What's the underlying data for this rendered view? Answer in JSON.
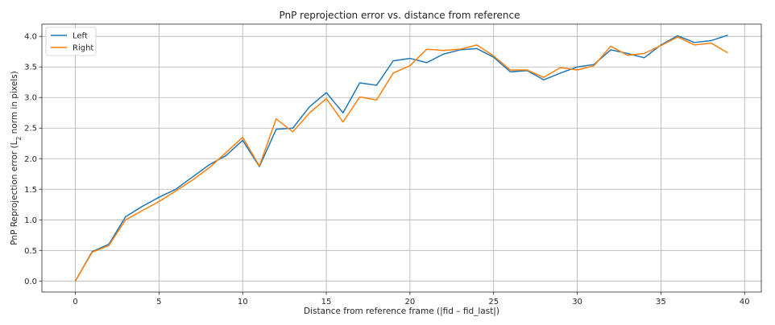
{
  "chart_data": {
    "type": "line",
    "title": "PnP reprojection error vs. distance from reference",
    "xlabel": "Distance from reference frame (|fid – fid_last|)",
    "ylabel_parts": [
      "PnP Reprojection error (L",
      "2",
      " norm in pixels)"
    ],
    "xlim": [
      -2,
      41
    ],
    "ylim": [
      -0.18,
      4.2
    ],
    "x_ticks": [
      0,
      5,
      10,
      15,
      20,
      25,
      30,
      35,
      40
    ],
    "x_tick_labels": [
      "0",
      "5",
      "10",
      "15",
      "20",
      "25",
      "30",
      "35",
      "40"
    ],
    "y_ticks": [
      0.0,
      0.5,
      1.0,
      1.5,
      2.0,
      2.5,
      3.0,
      3.5,
      4.0
    ],
    "y_tick_labels": [
      "0.0",
      "0.5",
      "1.0",
      "1.5",
      "2.0",
      "2.5",
      "3.0",
      "3.5",
      "4.0"
    ],
    "grid": true,
    "legend_position": "top-left",
    "x": [
      0,
      1,
      2,
      3,
      4,
      5,
      6,
      7,
      8,
      9,
      10,
      11,
      12,
      13,
      14,
      15,
      16,
      17,
      18,
      19,
      20,
      21,
      22,
      23,
      24,
      25,
      26,
      27,
      28,
      29,
      30,
      31,
      32,
      33,
      34,
      35,
      36,
      37,
      38,
      39
    ],
    "series": [
      {
        "name": "Left",
        "color": "#1f77b4",
        "values": [
          0.0,
          0.48,
          0.6,
          1.05,
          1.22,
          1.37,
          1.5,
          1.7,
          1.9,
          2.05,
          2.3,
          1.87,
          2.48,
          2.5,
          2.85,
          3.08,
          2.75,
          3.24,
          3.2,
          3.6,
          3.64,
          3.57,
          3.71,
          3.78,
          3.8,
          3.66,
          3.42,
          3.44,
          3.29,
          3.4,
          3.5,
          3.54,
          3.78,
          3.72,
          3.65,
          3.86,
          4.01,
          3.9,
          3.93,
          4.02
        ]
      },
      {
        "name": "Right",
        "color": "#ff7f0e",
        "values": [
          0.0,
          0.47,
          0.58,
          1.0,
          1.15,
          1.3,
          1.47,
          1.65,
          1.85,
          2.1,
          2.35,
          1.88,
          2.65,
          2.44,
          2.75,
          2.98,
          2.6,
          3.01,
          2.96,
          3.4,
          3.52,
          3.79,
          3.77,
          3.79,
          3.86,
          3.68,
          3.45,
          3.45,
          3.33,
          3.49,
          3.45,
          3.52,
          3.84,
          3.69,
          3.72,
          3.85,
          3.99,
          3.86,
          3.89,
          3.73
        ]
      }
    ]
  }
}
